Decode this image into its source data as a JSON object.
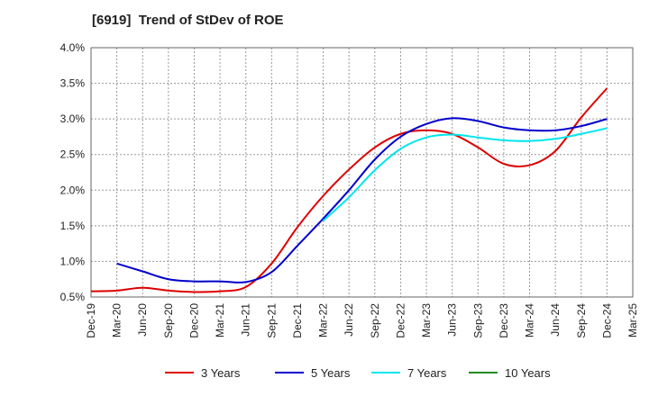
{
  "chart_data": {
    "type": "line",
    "title": "[6919]  Trend of StDev of ROE",
    "xlabel": "",
    "ylabel": "",
    "x_tick_labels": [
      "Dec-19",
      "Mar-20",
      "Jun-20",
      "Sep-20",
      "Dec-20",
      "Mar-21",
      "Jun-21",
      "Sep-21",
      "Dec-21",
      "Mar-22",
      "Jun-22",
      "Sep-22",
      "Dec-22",
      "Mar-23",
      "Jun-23",
      "Sep-23",
      "Dec-23",
      "Mar-24",
      "Jun-24",
      "Sep-24",
      "Dec-24",
      "Mar-25"
    ],
    "y_tick_labels": [
      "4.0%",
      "3.5%",
      "3.0%",
      "2.5%",
      "2.0%",
      "1.5%",
      "1.0%",
      "0.5%"
    ],
    "ylim": [
      0.5,
      4.0
    ],
    "grid": true,
    "legend_position": "bottom",
    "series": [
      {
        "name": "3 Years",
        "color": "#dd0000",
        "x": [
          "Dec-19",
          "Mar-20",
          "Jun-20",
          "Sep-20",
          "Dec-20",
          "Mar-21",
          "Jun-21",
          "Sep-21",
          "Dec-21",
          "Mar-22",
          "Jun-22",
          "Sep-22",
          "Dec-22",
          "Mar-23",
          "Jun-23",
          "Sep-23",
          "Dec-23",
          "Mar-24",
          "Jun-24",
          "Sep-24",
          "Dec-24"
        ],
        "values": [
          0.58,
          0.59,
          0.63,
          0.59,
          0.57,
          0.58,
          0.64,
          0.97,
          1.48,
          1.92,
          2.29,
          2.6,
          2.79,
          2.84,
          2.79,
          2.6,
          2.37,
          2.35,
          2.55,
          3.02,
          3.43
        ]
      },
      {
        "name": "5 Years",
        "color": "#0000cc",
        "x": [
          "Mar-20",
          "Jun-20",
          "Sep-20",
          "Dec-20",
          "Mar-21",
          "Jun-21",
          "Sep-21",
          "Dec-21",
          "Mar-22",
          "Jun-22",
          "Sep-22",
          "Dec-22",
          "Mar-23",
          "Jun-23",
          "Sep-23",
          "Dec-23",
          "Mar-24",
          "Jun-24",
          "Sep-24",
          "Dec-24"
        ],
        "values": [
          0.97,
          0.86,
          0.75,
          0.72,
          0.72,
          0.71,
          0.85,
          1.22,
          1.6,
          2.0,
          2.43,
          2.75,
          2.93,
          3.01,
          2.97,
          2.88,
          2.84,
          2.84,
          2.9,
          3.0
        ]
      },
      {
        "name": "7 Years",
        "color": "#00e5ee",
        "x": [
          "Mar-22",
          "Jun-22",
          "Sep-22",
          "Dec-22",
          "Mar-23",
          "Jun-23",
          "Sep-23",
          "Dec-23",
          "Mar-24",
          "Jun-24",
          "Sep-24",
          "Dec-24"
        ],
        "values": [
          1.57,
          1.9,
          2.28,
          2.58,
          2.74,
          2.78,
          2.74,
          2.7,
          2.69,
          2.72,
          2.79,
          2.87
        ]
      },
      {
        "name": "10 Years",
        "color": "#228b22",
        "x": [],
        "values": []
      }
    ]
  }
}
